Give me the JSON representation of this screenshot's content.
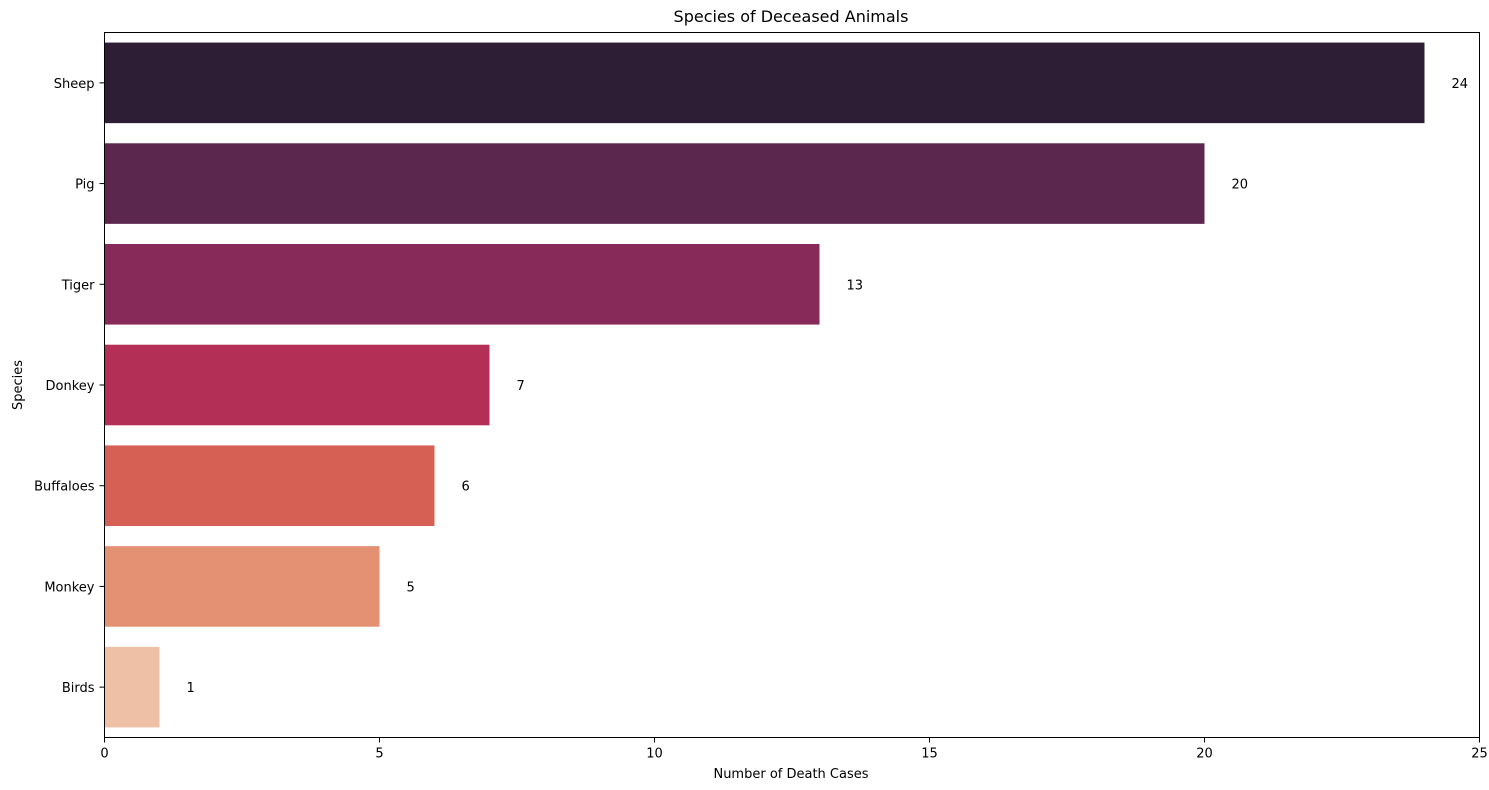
{
  "chart_data": {
    "type": "bar",
    "orientation": "horizontal",
    "title": "Species of Deceased Animals",
    "xlabel": "Number of Death Cases",
    "ylabel": "Species",
    "categories": [
      "Sheep",
      "Pig",
      "Tiger",
      "Donkey",
      "Buffaloes",
      "Monkey",
      "Birds"
    ],
    "values": [
      24,
      20,
      13,
      7,
      6,
      5,
      1
    ],
    "data_labels": [
      "24",
      "20",
      "13",
      "7",
      "6",
      "5",
      "1"
    ],
    "colors": [
      "#2e1e35",
      "#5c274e",
      "#872a59",
      "#b42f56",
      "#d76055",
      "#e39172",
      "#eec0a6"
    ],
    "xlim": [
      0,
      25
    ],
    "xticks": [
      0,
      5,
      10,
      15,
      20,
      25
    ],
    "xtick_labels": [
      "0",
      "5",
      "10",
      "15",
      "20",
      "25"
    ],
    "grid": false,
    "legend": "none"
  }
}
